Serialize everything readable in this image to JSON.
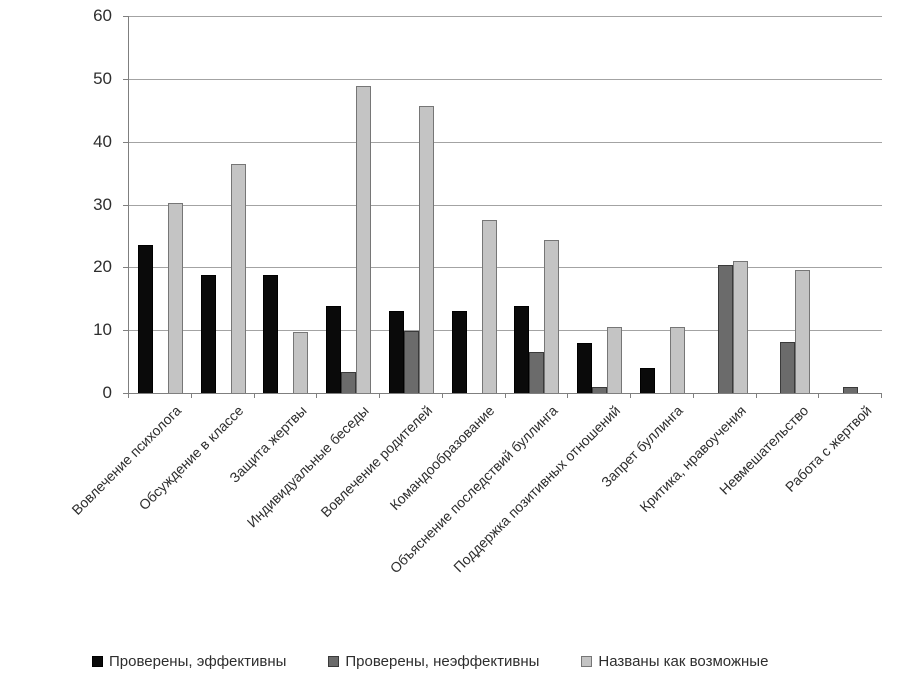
{
  "chart_data": {
    "type": "bar",
    "title": "",
    "xlabel": "",
    "ylabel": "",
    "categories": [
      "Вовлечение психолога",
      "Обсуждение в классе",
      "Защита жертвы",
      "Индивидуальные беседы",
      "Вовлечение родителей",
      "Командообразование",
      "Объяснение последствий буллинга",
      "Поддержка позитивных отношений",
      "Запрет буллинга",
      "Критика, нравоучения",
      "Невмешательство",
      "Работа с жертвой"
    ],
    "series": [
      {
        "name": "Проверены, эффективны",
        "color": "#0a0a0a",
        "border_color": "#000000",
        "values": [
          23.6,
          18.8,
          18.8,
          13.9,
          13.0,
          13.0,
          13.8,
          8.0,
          4.0,
          0,
          0,
          0
        ]
      },
      {
        "name": "Проверены, неэффективны",
        "color": "#6b6b6b",
        "border_color": "#3a3a3a",
        "values": [
          0,
          0,
          0,
          3.3,
          9.8,
          0,
          6.5,
          0.9,
          0,
          20.3,
          8.1,
          0.9
        ]
      },
      {
        "name": "Названы как возможные",
        "color": "#c4c4c4",
        "border_color": "#767676",
        "values": [
          30.3,
          36.5,
          9.7,
          48.9,
          45.6,
          27.6,
          24.4,
          10.5,
          10.5,
          21.0,
          19.5,
          0
        ]
      }
    ],
    "ylim": [
      0,
      60
    ],
    "yticks": [
      0,
      10,
      20,
      30,
      40,
      50,
      60
    ],
    "grid": "horizontal",
    "legend_position": "bottom"
  }
}
